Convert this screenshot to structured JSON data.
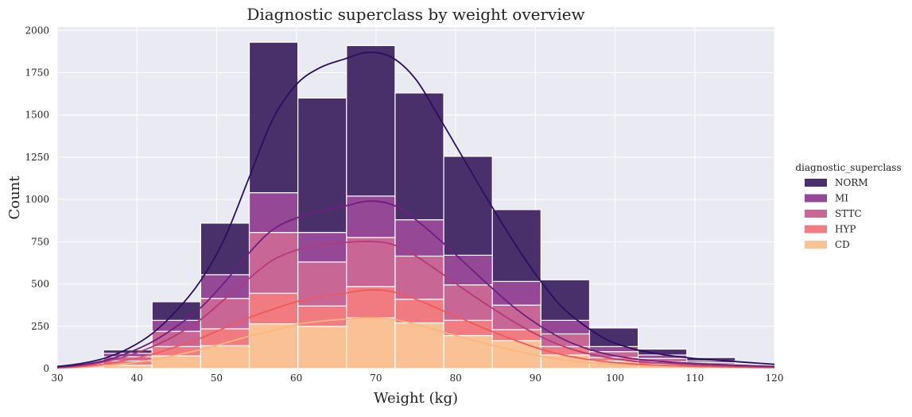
{
  "colors": {
    "background": "#ffffff",
    "plot_background": "#eaeaf2",
    "grid": "#ffffff",
    "series": {
      "NORM": "#3b1f5e",
      "MI": "#8c3a8e",
      "STTC": "#c45a8e",
      "HYP": "#f07177",
      "CD": "#fbbe8c"
    },
    "kde": {
      "NORM": "#2a0f5c",
      "MI": "#6e1f7e",
      "STTC": "#b23b79",
      "HYP": "#ee5a5c",
      "CD": "#fcb57c"
    }
  },
  "chart_data": {
    "type": "bar",
    "subtype": "stacked histogram with KDE lines",
    "title": "Diagnostic superclass by weight overview",
    "xlabel": "Weight (kg)",
    "ylabel": "Count",
    "xlim": [
      30,
      120
    ],
    "ylim": [
      0,
      2020
    ],
    "xticks": [
      30,
      40,
      50,
      60,
      70,
      80,
      90,
      100,
      110,
      120
    ],
    "yticks": [
      0,
      250,
      500,
      750,
      1000,
      1250,
      1500,
      1750,
      2000
    ],
    "xtick_labels": [
      "30",
      "40",
      "50",
      "60",
      "70",
      "80",
      "90",
      "100",
      "110",
      "120"
    ],
    "ytick_labels": [
      "0",
      "250",
      "500",
      "750",
      "1000",
      "1250",
      "1500",
      "1750",
      "2000"
    ],
    "grid": true,
    "legend": {
      "title": "diagnostic_superclass",
      "position": "right",
      "entries": [
        "NORM",
        "MI",
        "STTC",
        "HYP",
        "CD"
      ]
    },
    "bin_edges": [
      35.8,
      41.9,
      48,
      54.1,
      60.2,
      66.3,
      72.4,
      78.5,
      84.6,
      90.7,
      96.8,
      102.9,
      109,
      115.1
    ],
    "stack_order": [
      "CD",
      "HYP",
      "STTC",
      "MI",
      "NORM"
    ],
    "series": [
      {
        "name": "CD",
        "values": [
          20,
          75,
          135,
          265,
          250,
          300,
          270,
          195,
          165,
          80,
          45,
          25,
          15
        ]
      },
      {
        "name": "HYP",
        "values": [
          25,
          55,
          100,
          180,
          120,
          185,
          140,
          90,
          65,
          50,
          20,
          15,
          10
        ]
      },
      {
        "name": "STTC",
        "values": [
          25,
          90,
          180,
          360,
          260,
          290,
          255,
          210,
          145,
          75,
          35,
          20,
          10
        ]
      },
      {
        "name": "MI",
        "values": [
          20,
          65,
          140,
          235,
          175,
          245,
          215,
          175,
          140,
          80,
          30,
          20,
          10
        ]
      },
      {
        "name": "NORM",
        "values": [
          20,
          110,
          305,
          890,
          795,
          890,
          750,
          585,
          425,
          240,
          110,
          35,
          20
        ]
      }
    ],
    "kde_lines": [
      {
        "name": "NORM",
        "x": [
          30,
          33,
          36,
          39,
          42,
          45,
          48,
          51,
          54,
          57,
          60,
          63,
          66,
          69,
          72,
          75,
          78,
          81,
          84,
          87,
          90,
          93,
          96,
          99,
          102,
          105,
          108,
          111,
          114,
          117,
          120
        ],
        "y": [
          12,
          30,
          62,
          120,
          210,
          345,
          520,
          770,
          1120,
          1470,
          1680,
          1780,
          1830,
          1870,
          1840,
          1710,
          1480,
          1240,
          1000,
          770,
          560,
          380,
          260,
          170,
          120,
          90,
          70,
          55,
          45,
          35,
          25
        ]
      },
      {
        "name": "MI",
        "x": [
          30,
          33,
          36,
          39,
          42,
          45,
          48,
          51,
          54,
          57,
          60,
          63,
          66,
          69,
          72,
          75,
          78,
          81,
          84,
          87,
          90,
          93,
          96,
          99,
          102,
          105,
          108,
          111,
          114,
          117,
          120
        ],
        "y": [
          8,
          22,
          48,
          95,
          160,
          250,
          360,
          510,
          680,
          820,
          890,
          930,
          960,
          990,
          970,
          880,
          760,
          630,
          500,
          375,
          270,
          185,
          125,
          85,
          60,
          45,
          35,
          28,
          22,
          17,
          12
        ]
      },
      {
        "name": "STTC",
        "x": [
          30,
          33,
          36,
          39,
          42,
          45,
          48,
          51,
          54,
          57,
          60,
          63,
          66,
          69,
          72,
          75,
          78,
          81,
          84,
          87,
          90,
          93,
          96,
          99,
          102,
          105,
          108,
          111,
          114,
          117,
          120
        ],
        "y": [
          6,
          18,
          40,
          78,
          130,
          200,
          290,
          410,
          530,
          640,
          700,
          730,
          745,
          752,
          735,
          665,
          570,
          470,
          375,
          285,
          205,
          140,
          95,
          65,
          45,
          34,
          26,
          20,
          16,
          12,
          9
        ]
      },
      {
        "name": "HYP",
        "x": [
          30,
          33,
          36,
          39,
          42,
          45,
          48,
          51,
          54,
          57,
          60,
          63,
          66,
          69,
          72,
          75,
          78,
          81,
          84,
          87,
          90,
          93,
          96,
          99,
          102,
          105,
          108,
          111,
          114,
          117,
          120
        ],
        "y": [
          4,
          12,
          27,
          52,
          85,
          130,
          180,
          240,
          300,
          350,
          395,
          425,
          445,
          465,
          455,
          410,
          350,
          290,
          230,
          175,
          125,
          85,
          58,
          40,
          28,
          21,
          16,
          12,
          10,
          8,
          6
        ]
      },
      {
        "name": "CD",
        "x": [
          30,
          33,
          36,
          39,
          42,
          45,
          48,
          51,
          54,
          57,
          60,
          63,
          66,
          69,
          72,
          75,
          78,
          81,
          84,
          87,
          90,
          93,
          96,
          99,
          102,
          105,
          108,
          111,
          114,
          117,
          120
        ],
        "y": [
          2,
          7,
          16,
          31,
          52,
          80,
          112,
          150,
          190,
          225,
          260,
          280,
          292,
          300,
          292,
          262,
          222,
          182,
          144,
          110,
          80,
          55,
          38,
          27,
          19,
          14,
          11,
          8,
          6,
          5,
          4
        ]
      }
    ]
  }
}
